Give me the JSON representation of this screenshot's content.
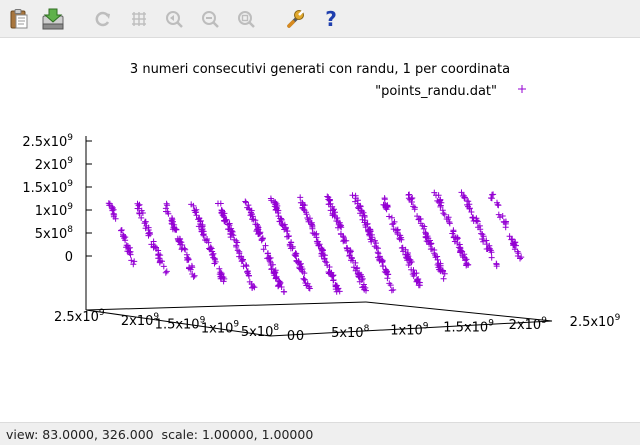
{
  "toolbar": {
    "buttons": [
      {
        "name": "copy-clipboard",
        "icon": "clipboard-icon",
        "enabled": true
      },
      {
        "name": "export",
        "icon": "export-icon",
        "enabled": true
      },
      {
        "name": "replot",
        "icon": "refresh-icon",
        "enabled": false
      },
      {
        "name": "grid",
        "icon": "grid-icon",
        "enabled": false
      },
      {
        "name": "previous-zoom",
        "icon": "zoom-previous-icon",
        "enabled": false
      },
      {
        "name": "unzoom",
        "icon": "zoom-out-icon",
        "enabled": false
      },
      {
        "name": "autoscale",
        "icon": "zoom-fit-icon",
        "enabled": false
      },
      {
        "name": "settings",
        "icon": "wrench-icon",
        "enabled": true
      },
      {
        "name": "help",
        "icon": "help-icon",
        "enabled": true
      }
    ]
  },
  "status": {
    "text": "view: 83.0000, 326.000  scale: 1.00000, 1.00000"
  },
  "colors": {
    "series": "#9400d3",
    "toolbar_bg": "#efefef"
  },
  "chart_data": {
    "type": "scatter",
    "title": "3 numeri consecutivi generati con randu, 1 per coordinata",
    "series": [
      {
        "name": "\"points_randu.dat\"",
        "marker": "+"
      }
    ],
    "legend_position": "top-right",
    "z_ticks": [
      {
        "base": "2.5x10",
        "exp": "9"
      },
      {
        "base": "2x10",
        "exp": "9"
      },
      {
        "base": "1.5x10",
        "exp": "9"
      },
      {
        "base": "1x10",
        "exp": "9"
      },
      {
        "base": "5x10",
        "exp": "8"
      },
      {
        "base": "0",
        "exp": ""
      }
    ],
    "left_axis_ticks": [
      {
        "base": "2.5x10",
        "exp": "9"
      },
      {
        "base": "2x10",
        "exp": "9"
      },
      {
        "base": "1.5x10",
        "exp": "9"
      },
      {
        "base": "1x10",
        "exp": "9"
      },
      {
        "base": "5x10",
        "exp": "8"
      },
      {
        "base": "0",
        "exp": ""
      }
    ],
    "right_axis_ticks": [
      {
        "base": "0",
        "exp": ""
      },
      {
        "base": "5x10",
        "exp": "8"
      },
      {
        "base": "1x10",
        "exp": "9"
      },
      {
        "base": "1.5x10",
        "exp": "9"
      },
      {
        "base": "2x10",
        "exp": "9"
      },
      {
        "base": "2.5x10",
        "exp": "9"
      }
    ],
    "view": [
      83,
      326
    ],
    "axis_range": [
      0,
      2500000000
    ],
    "planes": 15,
    "grid": false
  }
}
